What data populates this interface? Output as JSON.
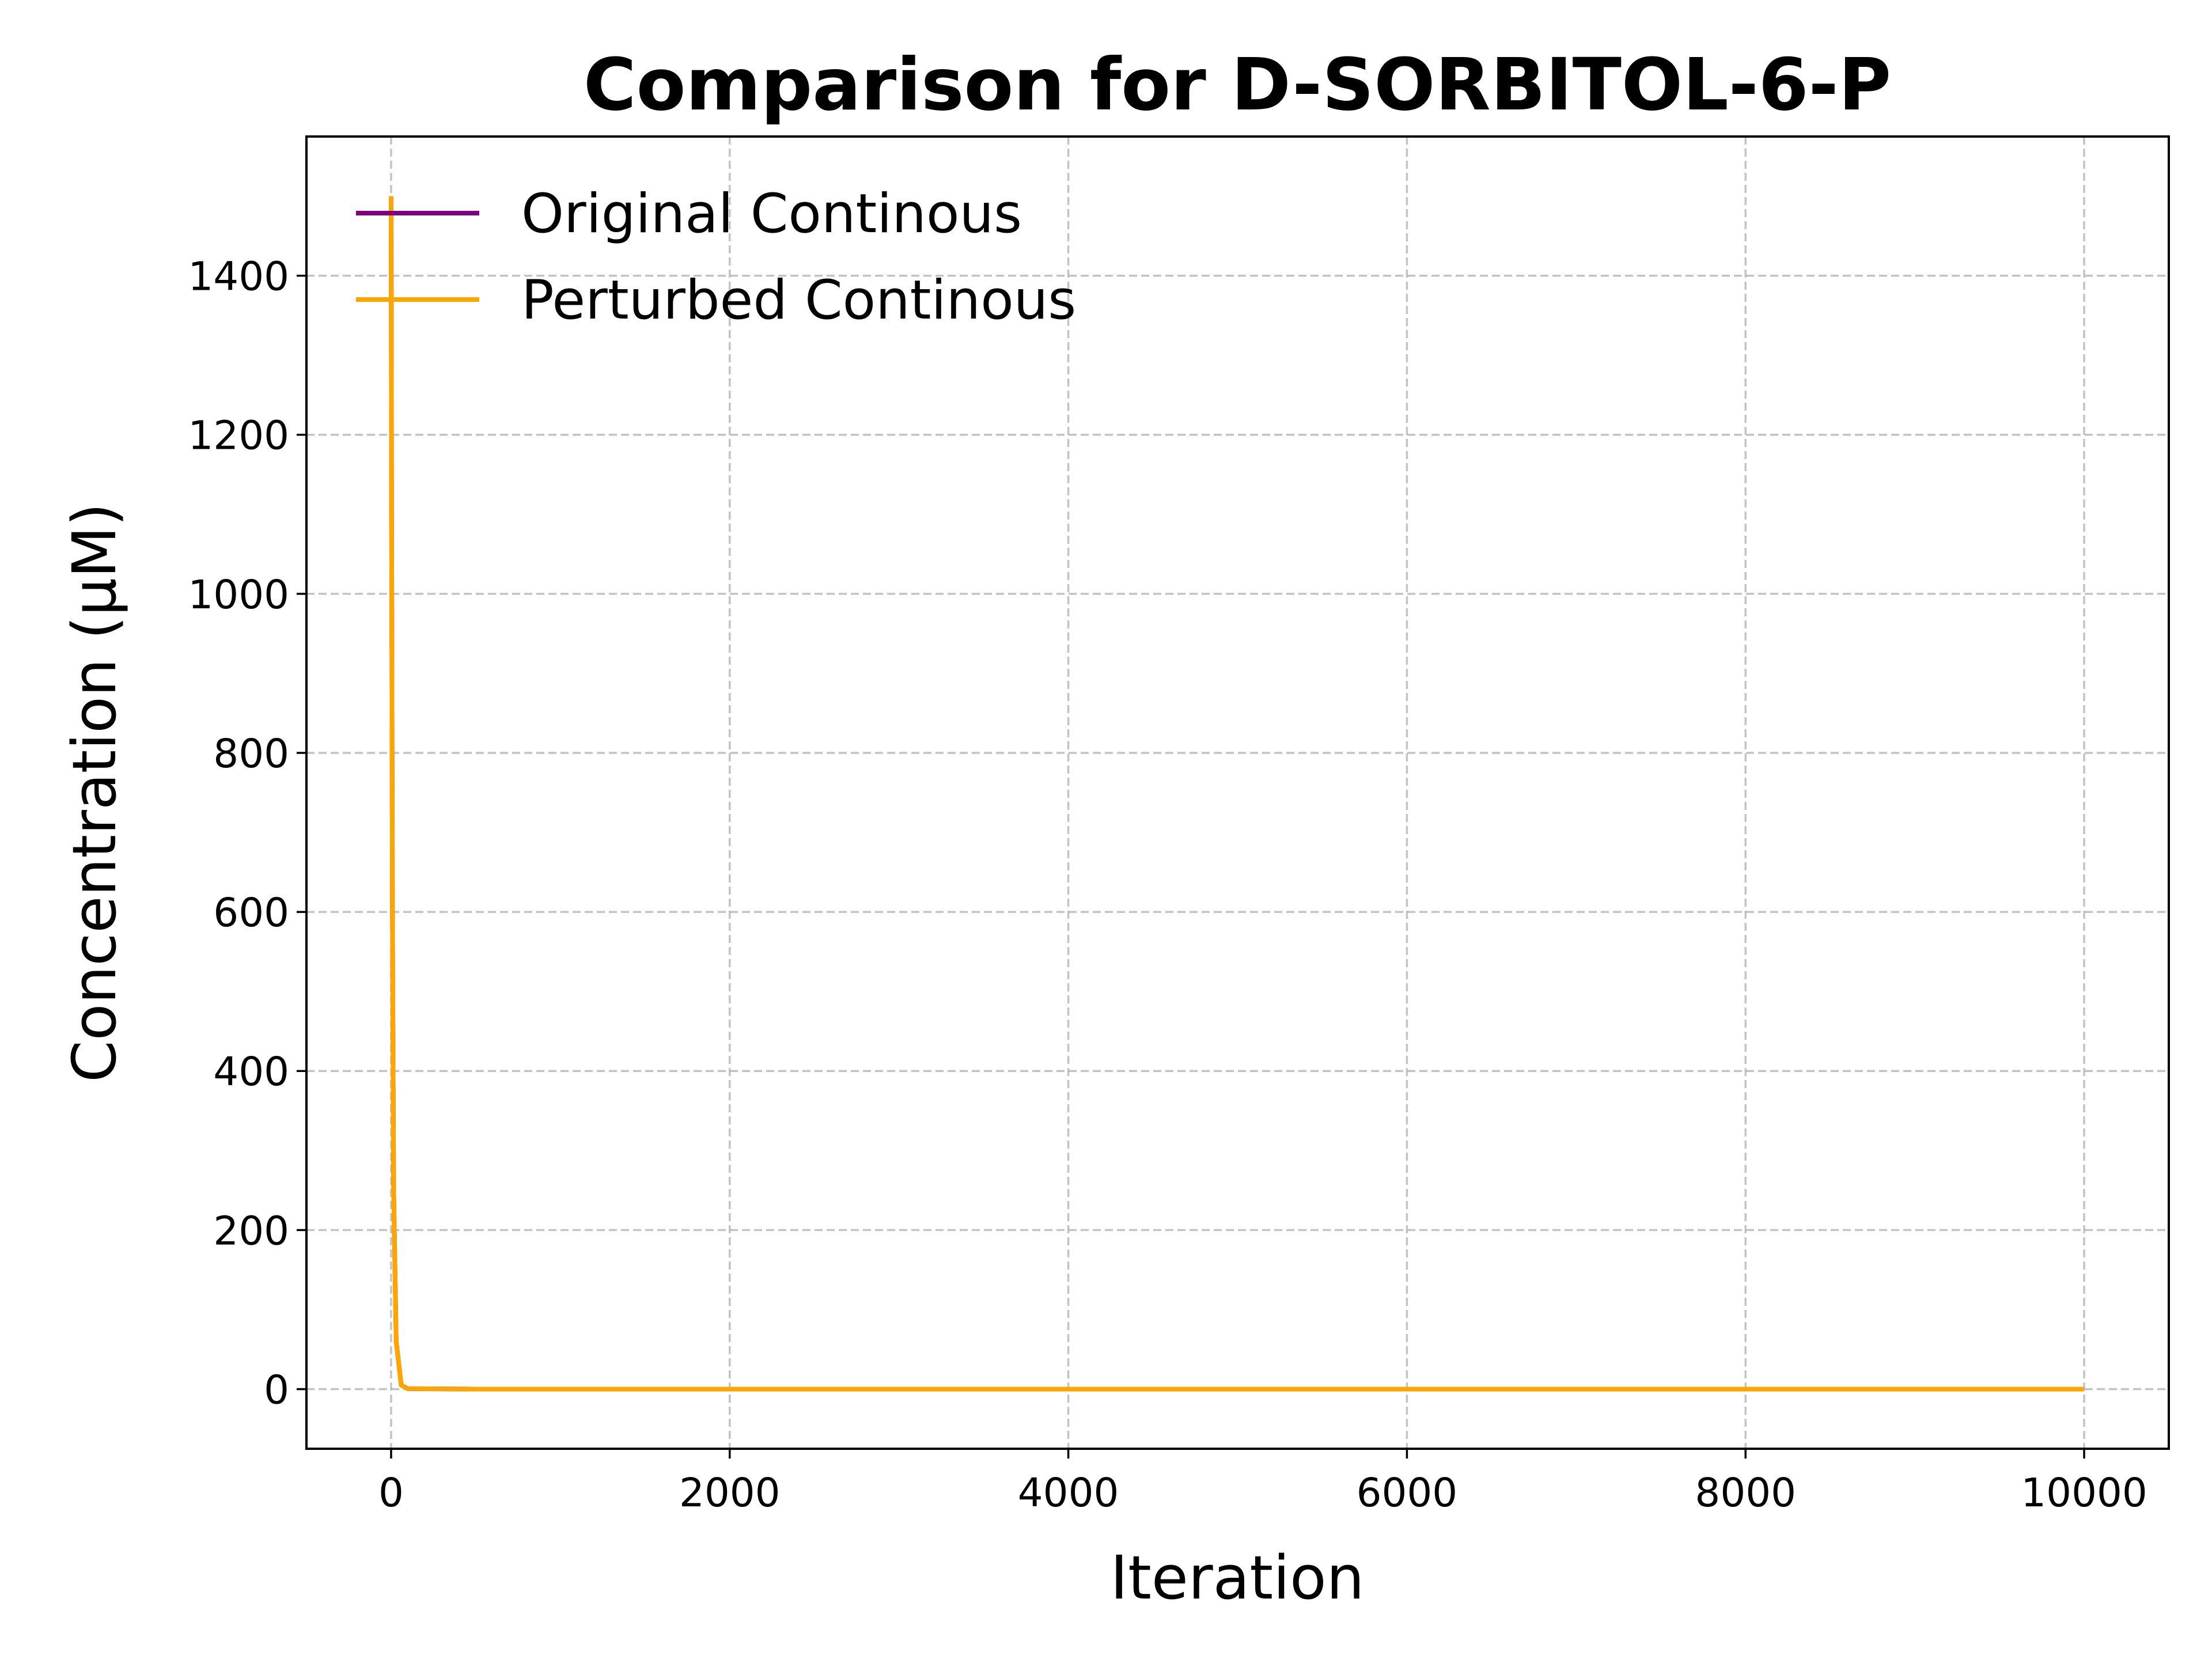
{
  "chart_data": {
    "type": "line",
    "title": "Comparison for D-SORBITOL-6-P",
    "xlabel": "Iteration",
    "ylabel": "Concentration (μM)",
    "xlim": [
      -500,
      10500
    ],
    "ylim": [
      -75,
      1575
    ],
    "xticks": [
      0,
      2000,
      4000,
      6000,
      8000,
      10000
    ],
    "xtick_labels": [
      "0",
      "2000",
      "4000",
      "6000",
      "8000",
      "10000"
    ],
    "yticks": [
      0,
      200,
      400,
      600,
      800,
      1000,
      1200,
      1400
    ],
    "ytick_labels": [
      "0",
      "200",
      "400",
      "600",
      "800",
      "1000",
      "1200",
      "1400"
    ],
    "grid": true,
    "legend_position": "top-left",
    "series": [
      {
        "name": "Original Continous",
        "color": "#800080",
        "x": [
          0,
          3,
          8,
          15,
          30,
          60,
          100,
          500,
          1000,
          2000,
          4000,
          6000,
          8000,
          10000
        ],
        "y": [
          1500,
          1100,
          600,
          250,
          60,
          5,
          0.5,
          0,
          0,
          0,
          0,
          0,
          0,
          0
        ]
      },
      {
        "name": "Perturbed Continous",
        "color": "#ffa500",
        "x": [
          0,
          3,
          8,
          15,
          30,
          60,
          100,
          500,
          1000,
          2000,
          4000,
          6000,
          8000,
          10000
        ],
        "y": [
          1500,
          1100,
          600,
          250,
          60,
          5,
          0.5,
          0,
          0,
          0,
          0,
          0,
          0,
          0
        ]
      }
    ]
  }
}
